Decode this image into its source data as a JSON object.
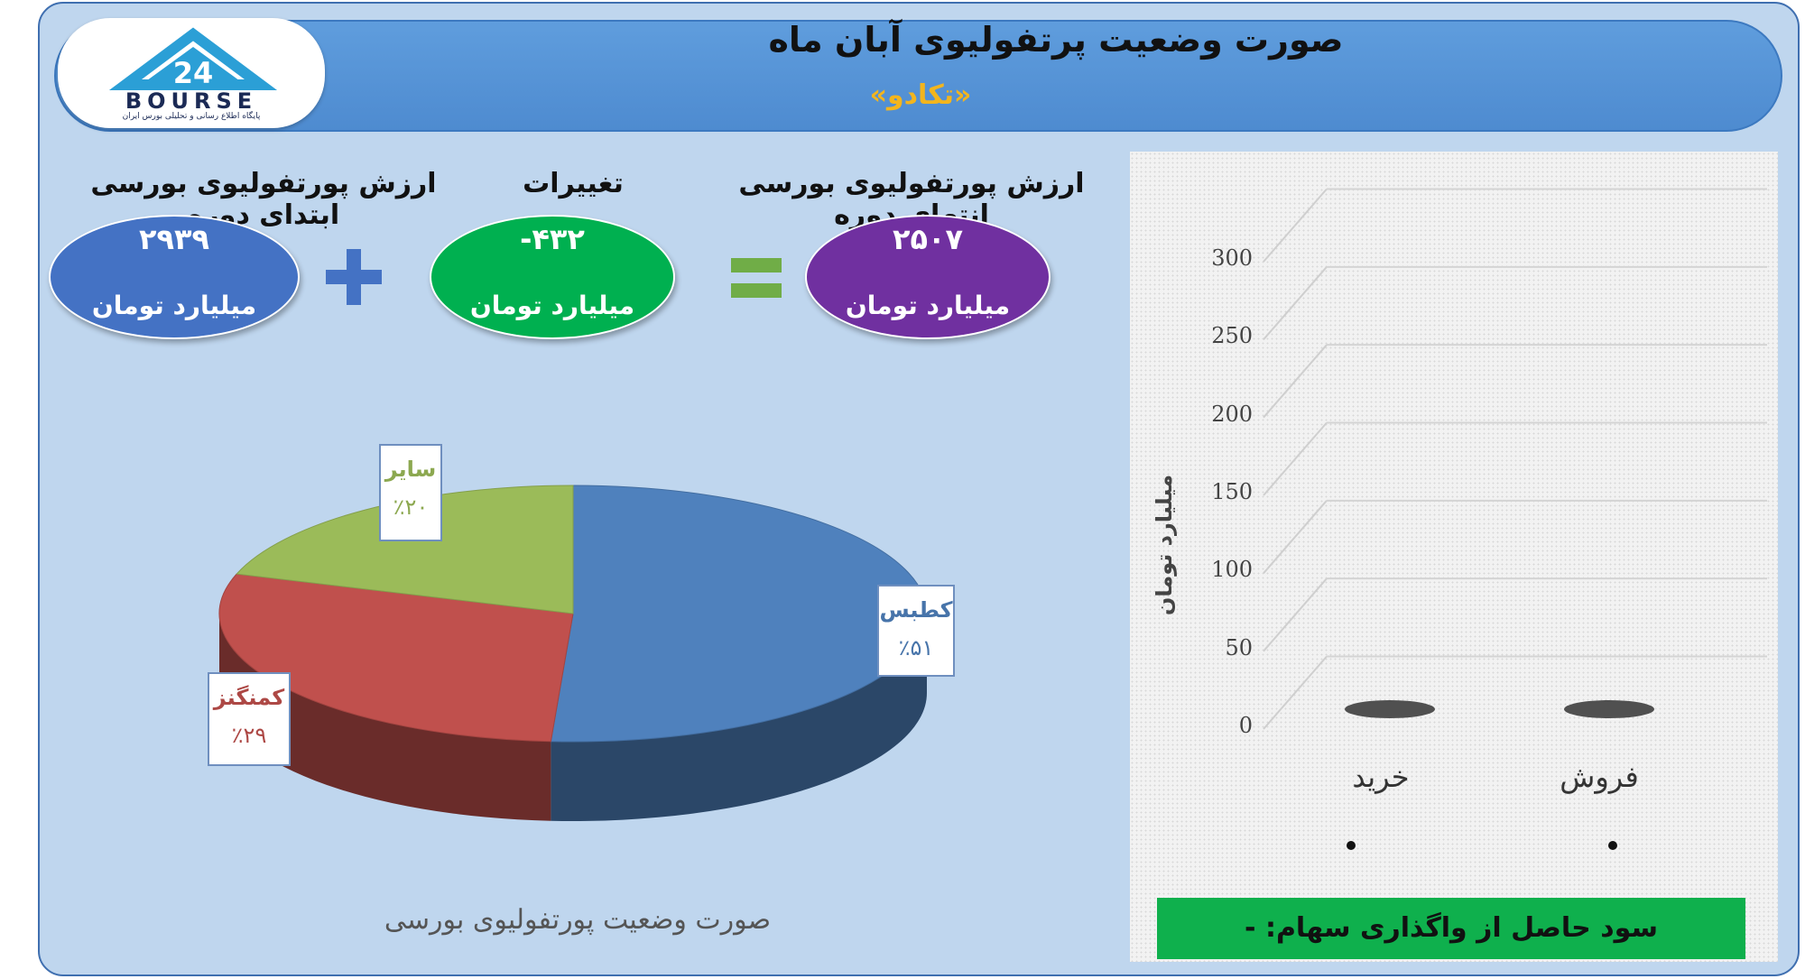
{
  "header": {
    "title": "صورت وضعیت پرتفولیوی آبان ماه",
    "subtitle": "«تکادو»"
  },
  "logo": {
    "text": "BOURSE",
    "tagline": "پایگاه اطلاع رسانی و تحلیلی بورس ایران",
    "colors": {
      "roof": "#2b9fd6",
      "text": "#1b2a55"
    }
  },
  "summary": {
    "start": {
      "label": "ارزش پورتفولیوی بورسی ابتدای دوره",
      "value": "۲۹۳۹",
      "unit": "میلیارد تومان",
      "color": "#4472c4"
    },
    "change": {
      "label": "تغییرات",
      "value": "-۴۳۲",
      "unit": "میلیارد تومان",
      "color": "#00b050"
    },
    "end": {
      "label": "ارزش پورتفولیوی بورسی انتهای دوره",
      "value": "۲۵۰۷",
      "unit": "میلیارد تومان",
      "color": "#7030a0"
    },
    "plus_sign": "+",
    "equals_sign": "=",
    "plus_color": "#4472c4",
    "equals_color": "#70ad47"
  },
  "chart_data": [
    {
      "type": "pie",
      "title": "صورت وضعیت پورتفولیوی بورسی",
      "slices": [
        {
          "name": "کطبس",
          "value": 51,
          "label": "٪۵۱",
          "color": "#4f81bd"
        },
        {
          "name": "کمنگنز",
          "value": 29,
          "label": "٪۲۹",
          "color": "#c0504d"
        },
        {
          "name": "سایر",
          "value": 20,
          "label": "٪۲۰",
          "color": "#9bbb59"
        }
      ]
    },
    {
      "type": "bar",
      "title": "",
      "ylabel": "میلیارد تومان",
      "categories": [
        "فروش",
        "خرید"
      ],
      "values": [
        0,
        0
      ],
      "ylim": [
        0,
        300
      ],
      "yticks": [
        "0",
        "50",
        "100",
        "150",
        "200",
        "250",
        "300"
      ],
      "grid": true,
      "data_labels": [
        "•",
        "•"
      ]
    }
  ],
  "footer": {
    "profit_text": "سود حاصل از واگذاری سهام: -",
    "profit_color": "#0fb04d"
  }
}
